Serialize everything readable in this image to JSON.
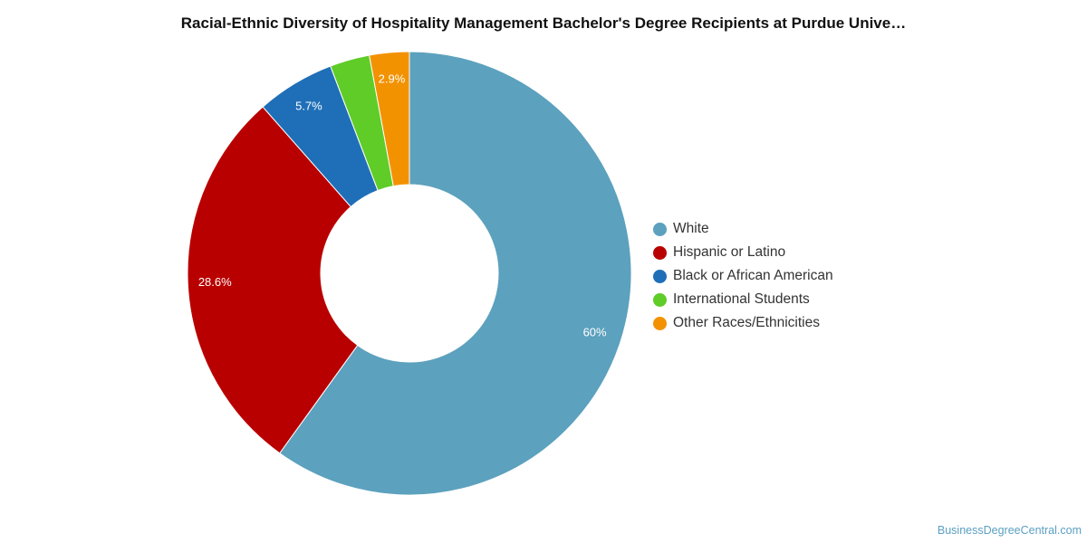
{
  "chart_data": {
    "type": "pie",
    "variant": "donut",
    "title": "Racial-Ethnic Diversity of Hospitality Management Bachelor's Degree Recipients at Purdue Unive…",
    "slices": [
      {
        "name": "White",
        "value": 60,
        "label": "60%",
        "color": "#5ca1be"
      },
      {
        "name": "Hispanic or Latino",
        "value": 28.6,
        "label": "28.6%",
        "color": "#b90000"
      },
      {
        "name": "Black or African American",
        "value": 5.7,
        "label": "5.7%",
        "color": "#1f6fb8"
      },
      {
        "name": "International Students",
        "value": 2.9,
        "label": "",
        "color": "#5fcc28"
      },
      {
        "name": "Other Races/Ethnicities",
        "value": 2.9,
        "label": "2.9%",
        "color": "#f39200"
      }
    ],
    "legend_position": "right"
  },
  "footer": {
    "credit": "BusinessDegreeCentral.com"
  }
}
